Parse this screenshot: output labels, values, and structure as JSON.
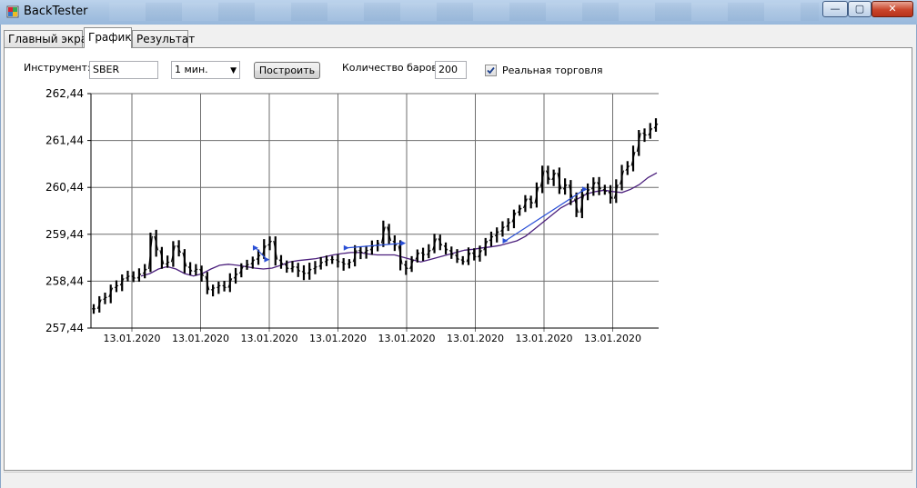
{
  "window": {
    "title": "BackTester",
    "minimize_glyph": "—",
    "maximize_glyph": "▢",
    "close_glyph": "✕"
  },
  "tabs": [
    {
      "label": "Главный экран",
      "active": false
    },
    {
      "label": "График",
      "active": true
    },
    {
      "label": "Результат",
      "active": false
    }
  ],
  "controls": {
    "instrument_label": "Инструмент:",
    "instrument_value": "SBER",
    "timeframe_value": "1 мин.",
    "build_button": "Построить",
    "bars_label": "Количество баров:",
    "bars_value": "200",
    "real_trading_label": "Реальная торговля",
    "real_trading_checked": true
  },
  "chart_data": {
    "type": "line",
    "y_ticks": [
      "262,44",
      "261,44",
      "260,44",
      "259,44",
      "258,44",
      "257,44"
    ],
    "y_tick_values": [
      262.44,
      261.44,
      260.44,
      259.44,
      258.44,
      257.44
    ],
    "ylim": [
      257.44,
      262.44
    ],
    "x_tick_labels": [
      "13.01.2020",
      "13.01.2020",
      "13.01.2020",
      "13.01.2020",
      "13.01.2020",
      "13.01.2020",
      "13.01.2020",
      "13.01.2020"
    ],
    "grid": true,
    "series": [
      {
        "role": "price",
        "color": "#000000",
        "values": [
          257.85,
          258.05,
          258.1,
          258.3,
          258.35,
          258.5,
          258.55,
          258.5,
          258.6,
          258.7,
          259.4,
          259.1,
          258.8,
          258.85,
          259.2,
          259.05,
          258.75,
          258.65,
          258.7,
          258.55,
          258.25,
          258.3,
          258.35,
          258.3,
          258.5,
          258.6,
          258.75,
          258.8,
          258.9,
          259.0,
          259.2,
          259.3,
          258.9,
          258.8,
          258.7,
          258.75,
          258.65,
          258.6,
          258.7,
          258.75,
          258.85,
          258.9,
          258.9,
          258.85,
          258.8,
          258.85,
          259.1,
          259.05,
          259.1,
          259.2,
          259.25,
          259.6,
          259.3,
          259.2,
          258.8,
          258.7,
          258.9,
          259.05,
          259.0,
          259.1,
          259.35,
          259.2,
          259.1,
          259.0,
          258.9,
          258.85,
          259.05,
          258.95,
          259.1,
          259.3,
          259.4,
          259.5,
          259.6,
          259.7,
          259.9,
          260.0,
          260.2,
          260.1,
          260.45,
          260.8,
          260.6,
          260.75,
          260.4,
          260.5,
          260.2,
          259.9,
          260.3,
          260.4,
          260.55,
          260.4,
          260.35,
          260.2,
          260.5,
          260.8,
          260.9,
          261.2,
          261.6,
          261.55,
          261.7,
          261.8
        ]
      },
      {
        "role": "moving-average",
        "color": "#4b1f7c",
        "values": [
          258.55,
          258.6,
          258.7,
          258.75,
          258.7,
          258.6,
          258.55,
          258.6,
          258.7,
          258.78,
          258.8,
          258.78,
          258.75,
          258.72,
          258.7,
          258.72,
          258.78,
          258.85,
          258.88,
          258.9,
          258.92,
          258.96,
          259.0,
          259.03,
          259.05,
          259.05,
          259.02,
          259.0,
          259.0,
          259.0,
          258.95,
          258.9,
          258.85,
          258.9,
          258.95,
          259.0,
          259.05,
          259.1,
          259.12,
          259.15,
          259.17,
          259.2,
          259.25,
          259.3,
          259.4,
          259.55,
          259.7,
          259.85,
          260.0,
          260.1,
          260.2,
          260.3,
          260.35,
          260.38,
          260.35,
          260.33,
          260.4,
          260.5,
          260.65,
          260.75
        ]
      },
      {
        "role": "trade-links",
        "color": "#2a4fd6",
        "values": []
      }
    ]
  }
}
